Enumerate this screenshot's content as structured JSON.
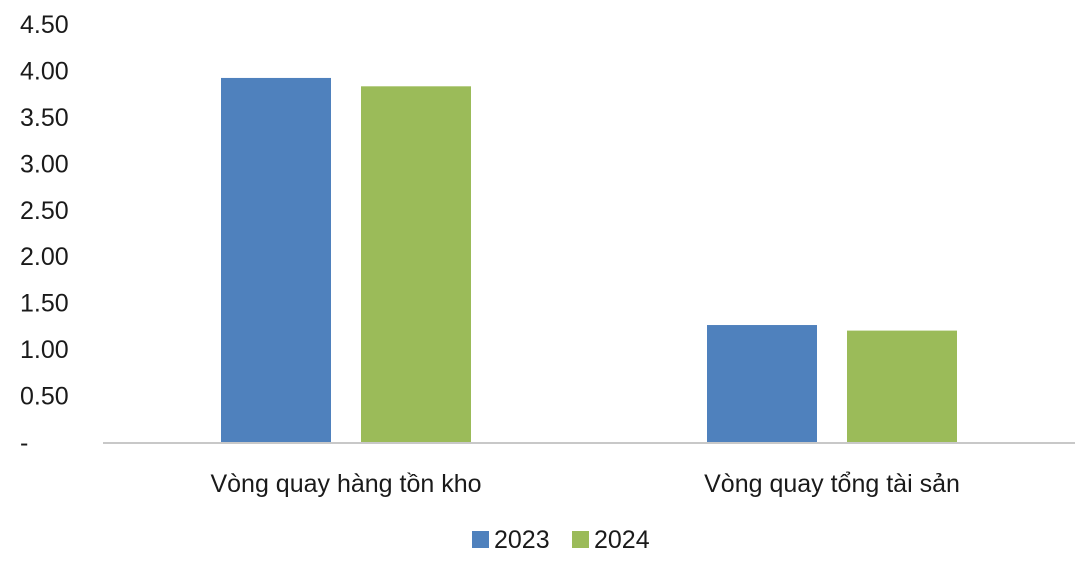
{
  "chart_data": {
    "type": "bar",
    "title": "",
    "xlabel": "",
    "ylabel": "",
    "categories": [
      "Vòng quay hàng tồn kho",
      "Vòng quay tổng tài sản"
    ],
    "series": [
      {
        "name": "2023",
        "values": [
          3.93,
          1.27
        ],
        "color": "#4f81bd"
      },
      {
        "name": "2024",
        "values": [
          3.84,
          1.21
        ],
        "color": "#9bbb59"
      }
    ],
    "ylim": [
      0,
      4.5
    ],
    "yticks": [
      0,
      0.5,
      1,
      1.5,
      2,
      2.5,
      3,
      3.5,
      4,
      4.5
    ],
    "ytick_labels": [
      "-",
      "0.50",
      "1.00",
      "1.50",
      "2.00",
      "2.50",
      "3.00",
      "3.50",
      "4.00",
      "4.50"
    ],
    "grid": false,
    "legend_position": "bottom",
    "axis_color": "#c8c8c8"
  }
}
